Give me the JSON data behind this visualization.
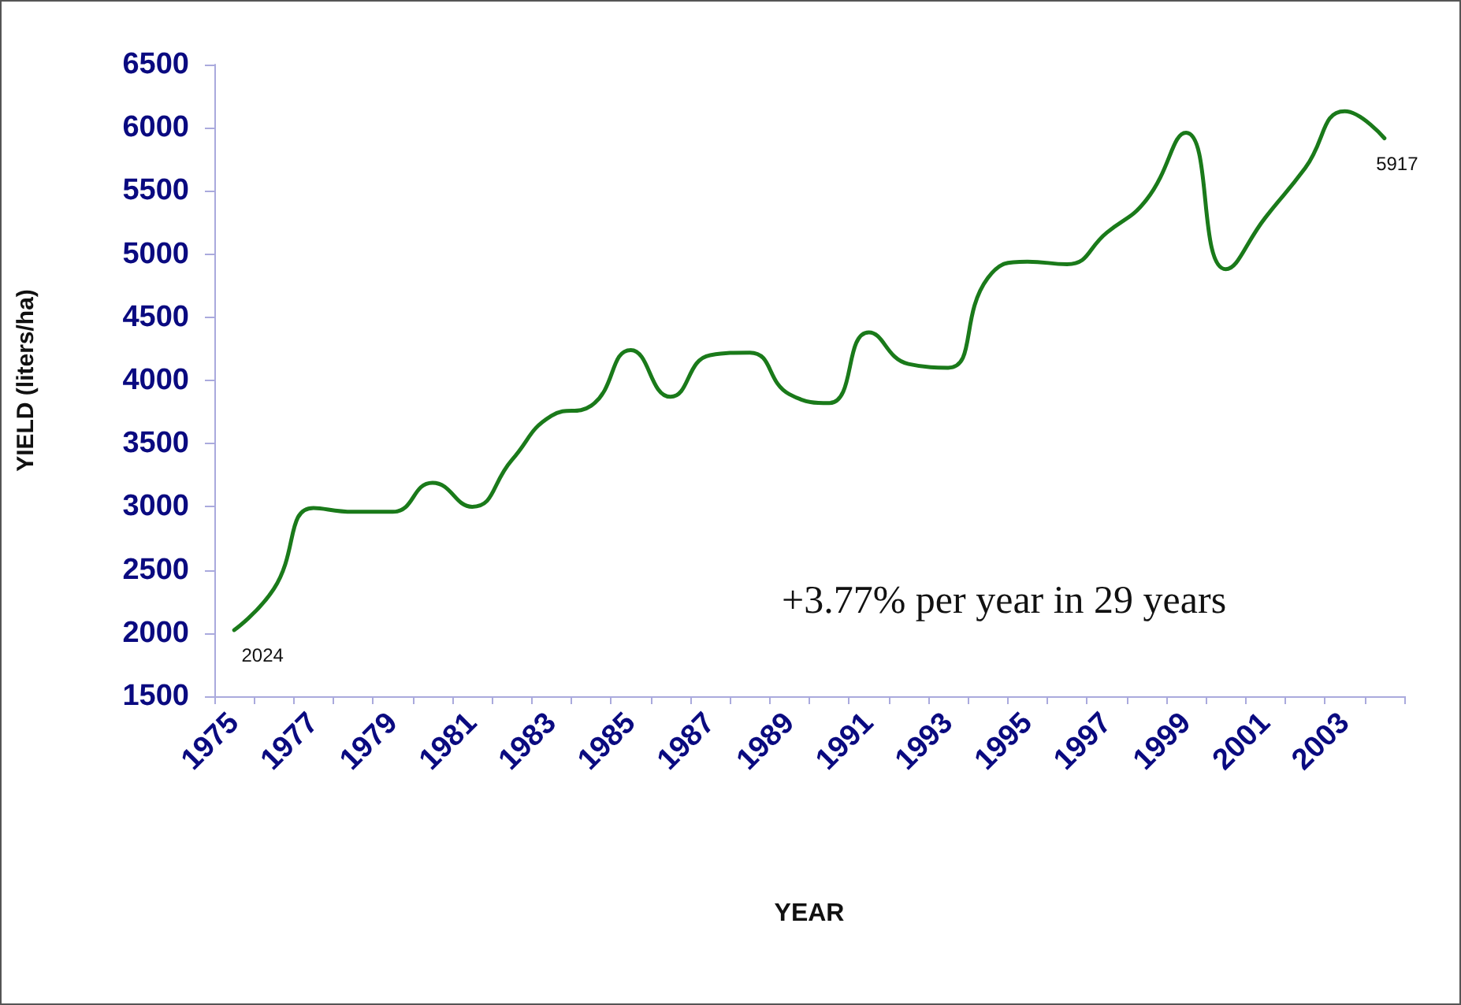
{
  "chart_data": {
    "type": "line",
    "xlabel": "YEAR",
    "ylabel": "YIELD (liters/ha)",
    "categories": [
      "1975",
      null,
      "1977",
      null,
      "1979",
      null,
      "1981",
      null,
      "1983",
      null,
      "1985",
      null,
      "1987",
      null,
      "1989",
      null,
      "1991",
      null,
      "1993",
      null,
      "1995",
      null,
      "1997",
      null,
      "1999",
      null,
      "2001",
      null,
      "2003",
      null
    ],
    "series": [
      {
        "color": "#1a7a1a",
        "values": [
          2024,
          2350,
          2990,
          2960,
          2960,
          3190,
          3000,
          3370,
          3720,
          3800,
          4240,
          3870,
          4200,
          4220,
          3890,
          3820,
          4380,
          4130,
          4100,
          4810,
          4940,
          4920,
          5170,
          5430,
          5960,
          4880,
          5290,
          5680,
          6130,
          5917
        ],
        "value_labels": [
          "2024",
          null,
          null,
          null,
          null,
          null,
          null,
          null,
          null,
          null,
          null,
          null,
          null,
          null,
          null,
          null,
          null,
          null,
          null,
          null,
          null,
          null,
          null,
          null,
          null,
          null,
          null,
          null,
          null,
          "5917"
        ]
      }
    ],
    "ylim": [
      1500,
      6500
    ],
    "yticks": [
      1500,
      2000,
      2500,
      3000,
      3500,
      4000,
      4500,
      5000,
      5500,
      6000,
      6500
    ],
    "annotations": [
      "+3.77% per year in 29 years"
    ],
    "grid": false,
    "marker": "none",
    "line_style": "solid"
  }
}
